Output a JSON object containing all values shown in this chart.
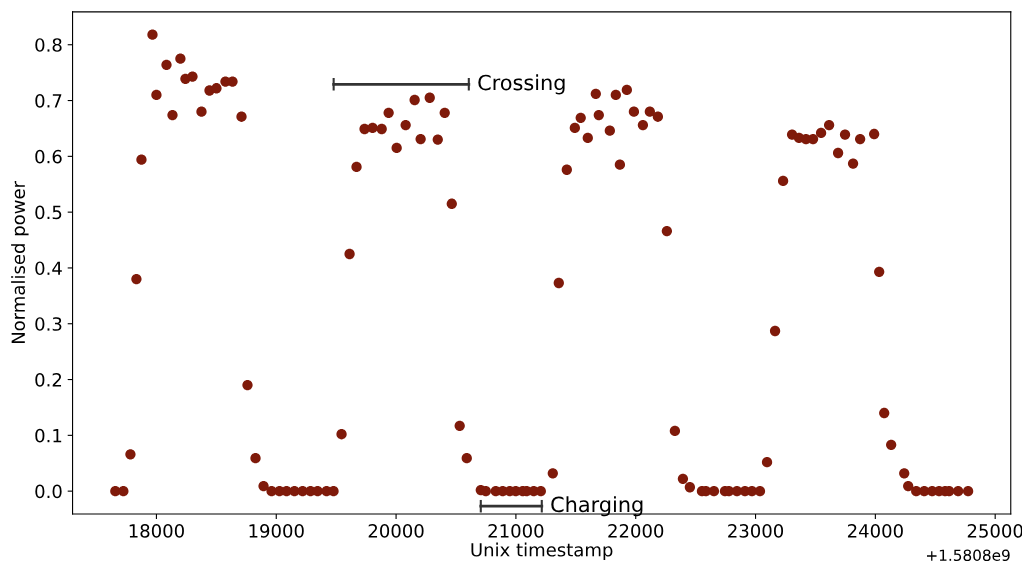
{
  "chart_data": {
    "type": "scatter",
    "xlabel": "Unix timestamp",
    "ylabel": "Normalised power",
    "marker": "circle",
    "grid": false,
    "xlim": [
      17300,
      25130
    ],
    "ylim": [
      -0.041,
      0.859
    ],
    "xticks": [
      18000,
      19000,
      20000,
      21000,
      22000,
      23000,
      24000,
      25000
    ],
    "yticks": [
      {
        "value": 0,
        "label": "0.0"
      },
      0.1,
      0.2,
      0.3,
      0.4,
      0.5,
      0.6,
      0.7,
      0.8
    ],
    "annotations": [
      "+1.5808e9",
      {
        "text": "Crossing",
        "x": 20607,
        "y": 0.729
      },
      {
        "text": "Charging",
        "x": 21216,
        "y": -0.027
      }
    ],
    "series": [
      {
        "color": "#7f1a0a",
        "x": [
          17657,
          17724,
          17783,
          17833,
          17875,
          17967,
          18000,
          18084,
          18134,
          18200,
          18242,
          18301,
          18376,
          18443,
          18501,
          18576,
          18635,
          18710,
          18760,
          18827,
          18894,
          18961,
          19027,
          19086,
          19152,
          19220,
          19286,
          19345,
          19420,
          19478,
          19545,
          19612,
          19670,
          19737,
          19804,
          19880,
          19938,
          20005,
          20080,
          20155,
          20205,
          20281,
          20348,
          20406,
          20465,
          20531,
          20590,
          20707,
          20749,
          20832,
          20890,
          20949,
          20999,
          21057,
          21090,
          21149,
          21208,
          21308,
          21358,
          21425,
          21492,
          21541,
          21600,
          21667,
          21692,
          21784,
          21834,
          21868,
          21926,
          21985,
          22060,
          22118,
          22185,
          22260,
          22327,
          22394,
          22452,
          22553,
          22586,
          22653,
          22745,
          22778,
          22845,
          22912,
          22970,
          23037,
          23096,
          23163,
          23230,
          23305,
          23363,
          23421,
          23480,
          23547,
          23614,
          23689,
          23747,
          23814,
          23873,
          23990,
          24032,
          24074,
          24132,
          24241,
          24274,
          24341,
          24408,
          24474,
          24532,
          24582,
          24616,
          24691,
          24774
        ],
        "values": [
          0,
          0,
          0.066,
          0.38,
          0.594,
          0.818,
          0.71,
          0.764,
          0.674,
          0.775,
          0.739,
          0.743,
          0.68,
          0.718,
          0.722,
          0.734,
          0.734,
          0.671,
          0.19,
          0.059,
          0.009,
          0,
          0,
          0,
          0,
          0,
          0,
          0,
          0,
          0,
          0.102,
          0.425,
          0.581,
          0.649,
          0.651,
          0.649,
          0.678,
          0.615,
          0.656,
          0.701,
          0.631,
          0.705,
          0.63,
          0.678,
          0.515,
          0.117,
          0.059,
          0.002,
          0,
          0,
          0,
          0,
          0,
          0,
          0,
          0,
          0,
          0.032,
          0.373,
          0.576,
          0.651,
          0.669,
          0.633,
          0.712,
          0.674,
          0.646,
          0.71,
          0.585,
          0.719,
          0.68,
          0.656,
          0.68,
          0.671,
          0.466,
          0.108,
          0.022,
          0.007,
          0,
          0,
          0,
          0,
          0,
          0,
          0,
          0,
          0,
          0.052,
          0.287,
          0.556,
          0.639,
          0.633,
          0.631,
          0.631,
          0.642,
          0.656,
          0.606,
          0.639,
          0.587,
          0.631,
          0.64,
          0.393,
          0.14,
          0.083,
          0.032,
          0.009,
          0,
          0,
          0,
          0,
          0,
          0,
          0,
          0
        ]
      },
      {
        "type": "line",
        "color": "#333333",
        "marker": "none",
        "x": [
          19479,
          20607
        ],
        "values": [
          0.729,
          0.729
        ]
      },
      {
        "type": "line",
        "color": "#333333",
        "marker": "none",
        "x": [
          20707,
          21216
        ],
        "values": [
          -0.027,
          -0.027
        ]
      }
    ]
  }
}
